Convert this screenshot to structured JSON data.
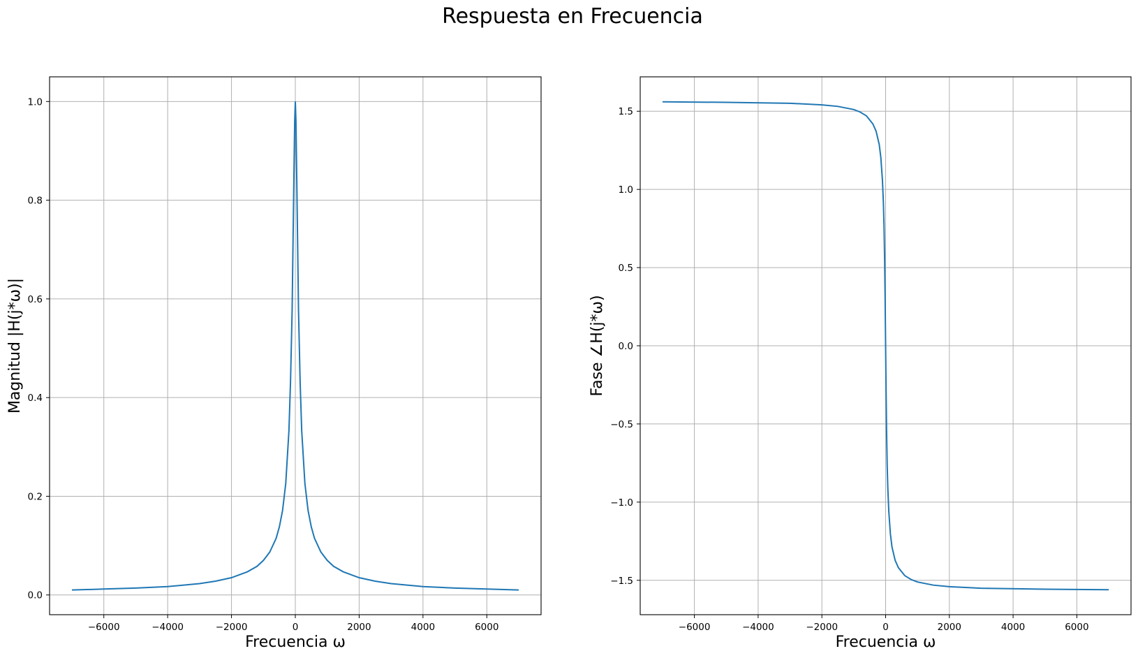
{
  "figure": {
    "title": "Respuesta en Frecuencia",
    "line_color": "#1f77b4",
    "grid_color": "#b0b0b0"
  },
  "chart_data": [
    {
      "type": "line",
      "title": "",
      "xlabel": "Frecuencia  ω",
      "ylabel": "Magnitud |H(j*ω)|",
      "xlim": [
        -7700,
        7700
      ],
      "ylim": [
        -0.04,
        1.05
      ],
      "xticks": [
        -6000,
        -4000,
        -2000,
        0,
        2000,
        4000,
        6000
      ],
      "xtick_labels": [
        "−6000",
        "−4000",
        "−2000",
        "0",
        "2000",
        "4000",
        "6000"
      ],
      "yticks": [
        0.0,
        0.2,
        0.4,
        0.6,
        0.8,
        1.0
      ],
      "ytick_labels": [
        "0.0",
        "0.2",
        "0.4",
        "0.6",
        "0.8",
        "1.0"
      ],
      "grid": true,
      "x": [
        -7000,
        -6000,
        -5000,
        -4000,
        -3000,
        -2500,
        -2000,
        -1500,
        -1200,
        -1000,
        -800,
        -600,
        -500,
        -400,
        -300,
        -200,
        -150,
        -100,
        -50,
        -20,
        0,
        20,
        50,
        100,
        150,
        200,
        300,
        400,
        500,
        600,
        800,
        1000,
        1200,
        1500,
        2000,
        2500,
        3000,
        4000,
        5000,
        6000,
        7000
      ],
      "y": [
        0.01,
        0.012,
        0.014,
        0.017,
        0.023,
        0.028,
        0.035,
        0.047,
        0.058,
        0.07,
        0.087,
        0.115,
        0.138,
        0.171,
        0.226,
        0.333,
        0.433,
        0.577,
        0.82,
        0.96,
        1.0,
        0.96,
        0.82,
        0.577,
        0.433,
        0.333,
        0.226,
        0.171,
        0.138,
        0.115,
        0.087,
        0.07,
        0.058,
        0.047,
        0.035,
        0.028,
        0.023,
        0.017,
        0.014,
        0.012,
        0.01
      ]
    },
    {
      "type": "line",
      "title": "",
      "xlabel": "Frecuencia ω",
      "ylabel": "Fase ∠H(j*ω)",
      "xlim": [
        -7700,
        7700
      ],
      "ylim": [
        -1.72,
        1.72
      ],
      "xticks": [
        -6000,
        -4000,
        -2000,
        0,
        2000,
        4000,
        6000
      ],
      "xtick_labels": [
        "−6000",
        "−4000",
        "−2000",
        "0",
        "2000",
        "4000",
        "6000"
      ],
      "yticks": [
        -1.5,
        -1.0,
        -0.5,
        0.0,
        0.5,
        1.0,
        1.5
      ],
      "ytick_labels": [
        "−1.5",
        "−1.0",
        "−0.5",
        "0.0",
        "0.5",
        "1.0",
        "1.5"
      ],
      "grid": true,
      "x": [
        -7000,
        -5000,
        -3000,
        -2000,
        -1500,
        -1000,
        -800,
        -600,
        -400,
        -300,
        -200,
        -150,
        -100,
        -70,
        -50,
        -30,
        -15,
        0,
        15,
        30,
        50,
        70,
        100,
        150,
        200,
        300,
        400,
        600,
        800,
        1000,
        1500,
        2000,
        3000,
        5000,
        7000
      ],
      "y": [
        1.56,
        1.557,
        1.551,
        1.541,
        1.531,
        1.511,
        1.495,
        1.47,
        1.419,
        1.373,
        1.287,
        1.204,
        1.059,
        0.916,
        0.771,
        0.54,
        0.291,
        0.0,
        -0.291,
        -0.54,
        -0.771,
        -0.916,
        -1.059,
        -1.204,
        -1.287,
        -1.373,
        -1.419,
        -1.47,
        -1.495,
        -1.511,
        -1.531,
        -1.541,
        -1.551,
        -1.557,
        -1.56
      ]
    }
  ]
}
